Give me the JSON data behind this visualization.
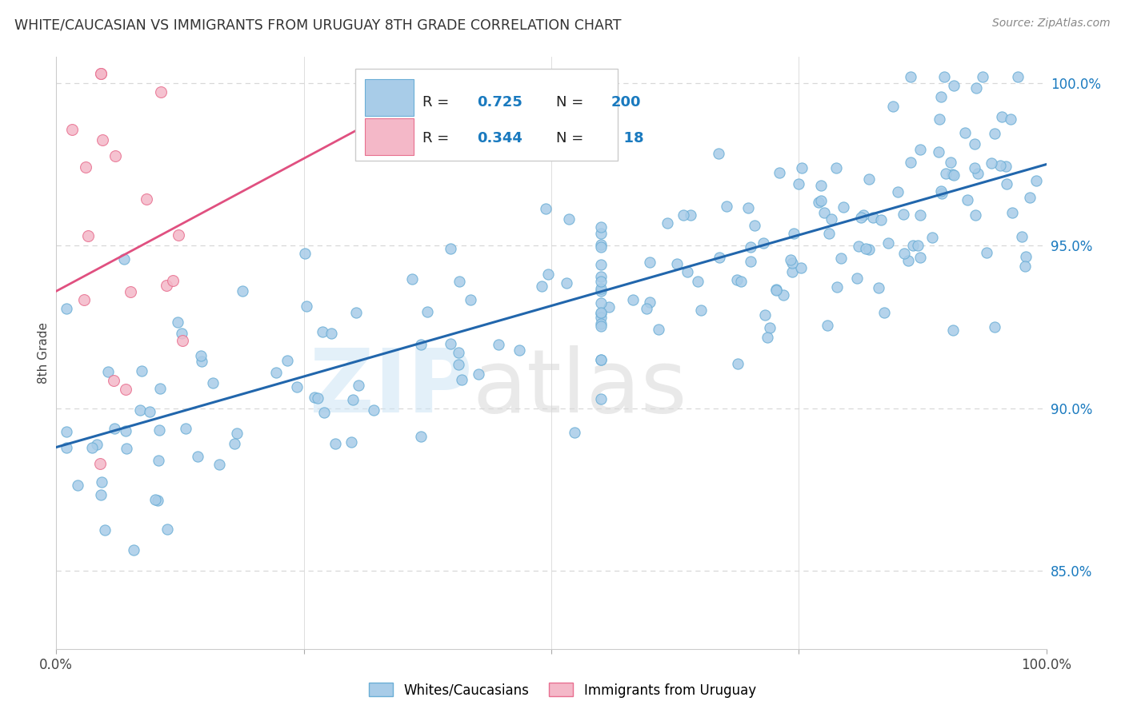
{
  "title": "WHITE/CAUCASIAN VS IMMIGRANTS FROM URUGUAY 8TH GRADE CORRELATION CHART",
  "source": "Source: ZipAtlas.com",
  "ylabel": "8th Grade",
  "blue_R": 0.725,
  "blue_N": 200,
  "pink_R": 0.344,
  "pink_N": 18,
  "blue_color": "#a8cce8",
  "blue_edge_color": "#6baed6",
  "pink_color": "#f4b8c8",
  "pink_edge_color": "#e87090",
  "blue_line_color": "#2166ac",
  "pink_line_color": "#e05080",
  "legend_blue_label": "Whites/Caucasians",
  "legend_pink_label": "Immigrants from Uruguay",
  "xmin": 0.0,
  "xmax": 1.0,
  "ymin": 0.826,
  "ymax": 1.008,
  "blue_trend_x0": 0.0,
  "blue_trend_y0": 0.888,
  "blue_trend_x1": 1.0,
  "blue_trend_y1": 0.975,
  "pink_trend_x0": 0.0,
  "pink_trend_y0": 0.936,
  "pink_trend_x1": 0.38,
  "pink_trend_y1": 0.998,
  "right_yticks": [
    1.0,
    0.95,
    0.9,
    0.85
  ],
  "right_yticklabels": [
    "100.0%",
    "95.0%",
    "90.0%",
    "85.0%"
  ],
  "right_tick_color": "#1a7abf",
  "grid_color": "#d8d8d8",
  "blue_seed": 7,
  "pink_seed": 42
}
